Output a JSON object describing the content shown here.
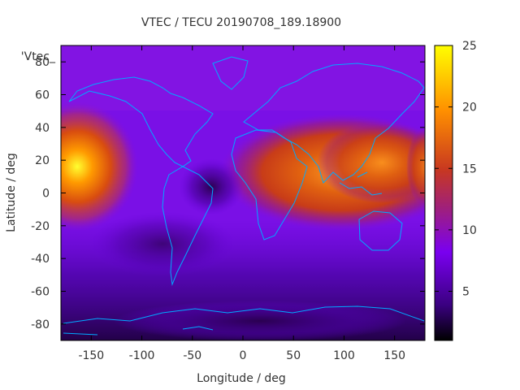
{
  "chart_data": {
    "type": "heatmap",
    "title": "VTEC / TECU 20190708_189.18900",
    "xlabel": "Longitude / deg",
    "ylabel": "Latitude / deg",
    "xlim": [
      -180,
      180
    ],
    "ylim": [
      -90,
      90
    ],
    "x_ticks": [
      "-150",
      "-100",
      "-50",
      "0",
      "50",
      "100",
      "150"
    ],
    "y_ticks": [
      "-80",
      "-60",
      "-40",
      "-20",
      "0",
      "20",
      "40",
      "60",
      "80"
    ],
    "colorbar": {
      "range": [
        1,
        25
      ],
      "ticks": [
        "5",
        "10",
        "15",
        "20",
        "25"
      ]
    },
    "legend_key": "'Vtec_",
    "grid": false,
    "colormap": "black-purple-red-orange-yellow",
    "overlay": "coastlines",
    "colors": {
      "coastline": "#00aaff",
      "frame": "#000000",
      "text": "#333333"
    }
  }
}
